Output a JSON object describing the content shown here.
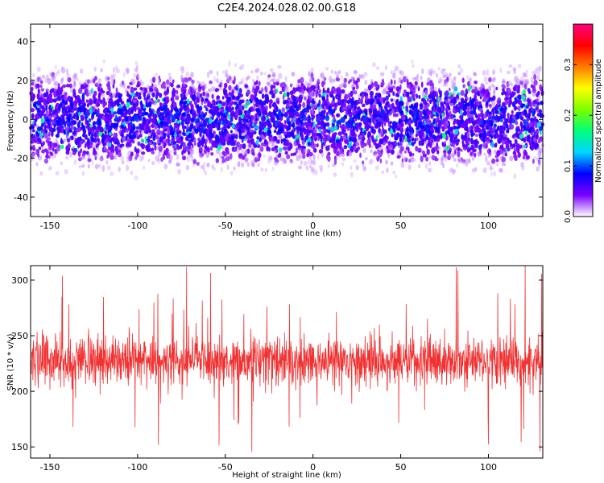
{
  "title": "C2E4.2024.028.02.00.G18",
  "chart_data": [
    {
      "type": "heatmap",
      "title": "C2E4.2024.028.02.00.G18",
      "xlabel": "Height of straight line (km)",
      "ylabel": "Frequency (Hz)",
      "xlim": [
        -161,
        131
      ],
      "ylim": [
        -50,
        49
      ],
      "xticks": [
        -150,
        -100,
        -50,
        0,
        50,
        100
      ],
      "yticks": [
        -40,
        -20,
        0,
        20,
        40
      ],
      "grid": false,
      "colorbar": {
        "label": "Normalized spectral amplitude",
        "range": [
          0.0,
          0.38
        ],
        "ticks": [
          0.0,
          0.1,
          0.2,
          0.3
        ],
        "tick_labels": [
          "0.0",
          "0.1",
          "0.2",
          "0.3"
        ],
        "colors": [
          "#ffffff",
          "#7b00ff",
          "#0000ff",
          "#00d5ff",
          "#00ff7b",
          "#7bff00",
          "#ffff00",
          "#ff7b00",
          "#ff0000",
          "#ff0080"
        ]
      },
      "description_values": {
        "dense_band_hz": [
          -20,
          20
        ],
        "typical_amplitude": 0.08,
        "peak_amplitude": 0.3
      }
    },
    {
      "type": "line",
      "xlabel": "Height of straight line (km)",
      "ylabel": "SNR (10 * v/v)",
      "xlim": [
        -161,
        131
      ],
      "ylim": [
        140,
        313
      ],
      "xticks": [
        -150,
        -100,
        -50,
        0,
        50,
        100
      ],
      "yticks": [
        150,
        200,
        250,
        300
      ],
      "grid": false,
      "color": "#f03232",
      "series_summary": {
        "typical_low": 200,
        "typical_high": 255,
        "mean": 227,
        "max": 313,
        "min": 145
      }
    }
  ]
}
